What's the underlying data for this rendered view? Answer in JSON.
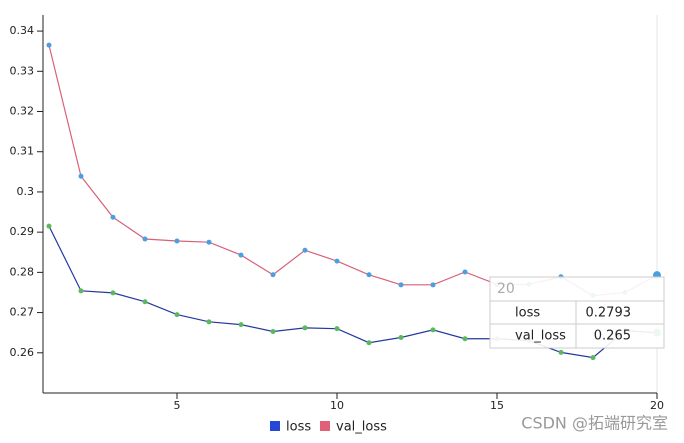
{
  "chart_data": {
    "type": "line",
    "x": [
      1,
      2,
      3,
      4,
      5,
      6,
      7,
      8,
      9,
      10,
      11,
      12,
      13,
      14,
      15,
      16,
      17,
      18,
      19,
      20
    ],
    "series": [
      {
        "name": "loss",
        "color": "#2447d6",
        "line_color": "#d9607a",
        "point_color": "#4a9fe0",
        "values": [
          0.3365,
          0.3039,
          0.2937,
          0.2883,
          0.2878,
          0.2875,
          0.2843,
          0.2794,
          0.2855,
          0.2828,
          0.2794,
          0.2769,
          0.2769,
          0.2801,
          0.277,
          0.277,
          0.2789,
          0.2742,
          0.275,
          0.2793
        ]
      },
      {
        "name": "val_loss",
        "color": "#e0607a",
        "line_color": "#23399e",
        "point_color": "#5cb85c",
        "values": [
          0.2915,
          0.2754,
          0.2749,
          0.2727,
          0.2695,
          0.2677,
          0.267,
          0.2653,
          0.2662,
          0.266,
          0.2625,
          0.2638,
          0.2657,
          0.2635,
          0.2635,
          0.263,
          0.2601,
          0.2588,
          0.2655,
          0.265
        ]
      }
    ],
    "xlim": [
      0.8,
      20
    ],
    "xticks": [
      5,
      10,
      15,
      20
    ],
    "ylim": [
      0.25,
      0.344
    ],
    "yticks": [
      0.26,
      0.27,
      0.28,
      0.29,
      0.3,
      0.31,
      0.32,
      0.33,
      0.34
    ],
    "tooltip": {
      "title": 20,
      "rows": [
        [
          "loss",
          0.2793
        ],
        [
          "val_loss",
          0.265
        ]
      ]
    },
    "watermark": "CSDN @拓端研究室"
  }
}
